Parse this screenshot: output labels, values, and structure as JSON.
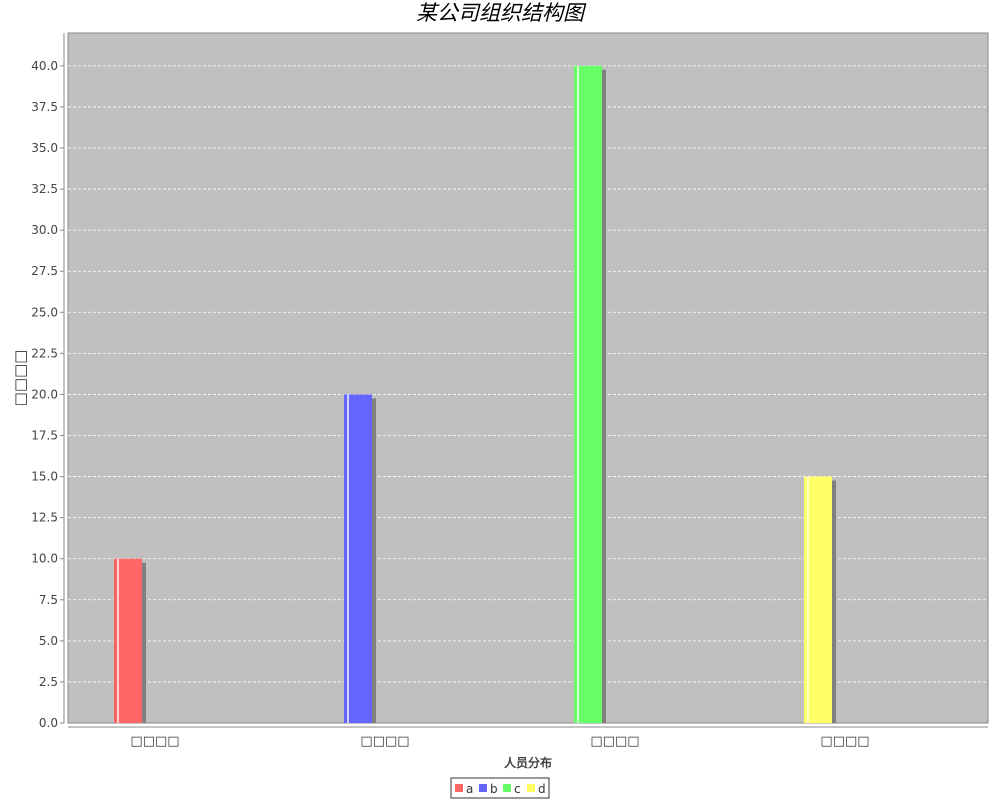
{
  "chart_data": {
    "type": "bar",
    "title": "某公司组织结构图",
    "xlabel": "人员分布",
    "ylabel": "□□□□",
    "categories": [
      "□□□□",
      "□□□□",
      "□□□□",
      "□□□□"
    ],
    "series": [
      {
        "name": "a",
        "values": [
          10,
          null,
          null,
          null
        ],
        "color": "#ff6666"
      },
      {
        "name": "b",
        "values": [
          null,
          20,
          null,
          null
        ],
        "color": "#6666ff"
      },
      {
        "name": "c",
        "values": [
          null,
          null,
          40,
          null
        ],
        "color": "#66ff66"
      },
      {
        "name": "d",
        "values": [
          null,
          null,
          null,
          15
        ],
        "color": "#ffff66"
      }
    ],
    "ylim": [
      0,
      42
    ],
    "yticks": [
      "0.0",
      "2.5",
      "5.0",
      "7.5",
      "10.0",
      "12.5",
      "15.0",
      "17.5",
      "20.0",
      "22.5",
      "25.0",
      "27.5",
      "30.0",
      "32.5",
      "35.0",
      "37.5",
      "40.0"
    ],
    "grid": true,
    "legend": "bottom-center",
    "plot_background": "#c0c0c0",
    "gridline_color": "#ffffff"
  }
}
